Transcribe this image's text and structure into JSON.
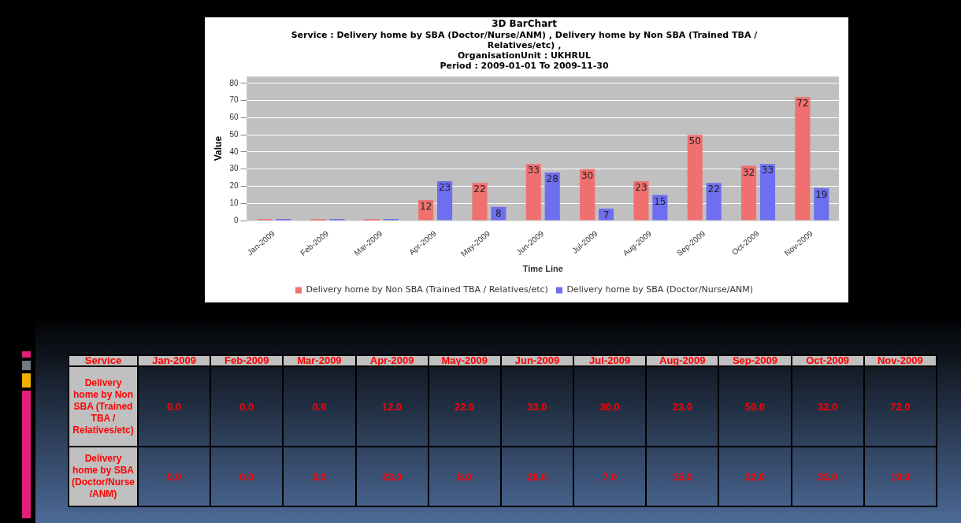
{
  "chart_data": [
    {
      "type": "bar",
      "title": "3D BarChart",
      "subtitle": "Service : Delivery home by SBA (Doctor/Nurse/ANM) , Delivery home by Non SBA (Trained TBA /\nRelatives/etc) ,\nOrganisationUnit : UKHRUL\nPeriod : 2009-01-01 To 2009-11-30",
      "xlabel": "Time Line",
      "ylabel": "Value",
      "categories": [
        "Jan-2009",
        "Feb-2009",
        "Mar-2009",
        "Apr-2009",
        "May-2009",
        "Jun-2009",
        "Jul-2009",
        "Aug-2009",
        "Sep-2009",
        "Oct-2009",
        "Nov-2009"
      ],
      "series": [
        {
          "name": "Delivery home by Non SBA (Trained TBA / Relatives/etc)",
          "color": "#f07070",
          "values": [
            0,
            0,
            0,
            12,
            22,
            33,
            30,
            23,
            50,
            32,
            72
          ],
          "value_labels": [
            null,
            null,
            null,
            "12",
            "22",
            "33",
            "30",
            "23",
            "50",
            "32",
            "72"
          ]
        },
        {
          "name": "Delivery home by SBA (Doctor/Nurse/ANM)",
          "color": "#6e6ef0",
          "values": [
            0,
            0,
            0,
            23,
            8,
            28,
            7,
            15,
            22,
            33,
            19
          ],
          "value_labels": [
            null,
            null,
            null,
            "23",
            "8",
            "28",
            "7",
            "15",
            "22",
            "33",
            "19"
          ]
        }
      ],
      "ylim": [
        0,
        84
      ],
      "yticks": [
        0,
        10,
        20,
        30,
        40,
        50,
        60,
        70,
        80
      ],
      "grid": "y",
      "legend": "bottom"
    },
    {
      "type": "other",
      "annotations": [
        "Service"
      ],
      "categories": [
        "Jan-2009",
        "Feb-2009",
        "Mar-2009",
        "Apr-2009",
        "May-2009",
        "Jun-2009",
        "Jul-2009",
        "Aug-2009",
        "Sep-2009",
        "Oct-2009",
        "Nov-2009"
      ],
      "y_categories": [
        "Delivery home by Non SBA (Trained TBA / Relatives/etc)",
        "Delivery home by SBA (Doctor/Nurse/ANM)"
      ],
      "cell_labels": [
        [
          "0.0",
          "0.0",
          "0.0",
          "12.0",
          "22.0",
          "33.0",
          "30.0",
          "23.0",
          "50.0",
          "32.0",
          "72.0"
        ],
        [
          "0.0",
          "0.0",
          "0.0",
          "23.0",
          "8.0",
          "28.0",
          "7.0",
          "15.0",
          "22.0",
          "33.0",
          "19.0"
        ]
      ]
    }
  ]
}
